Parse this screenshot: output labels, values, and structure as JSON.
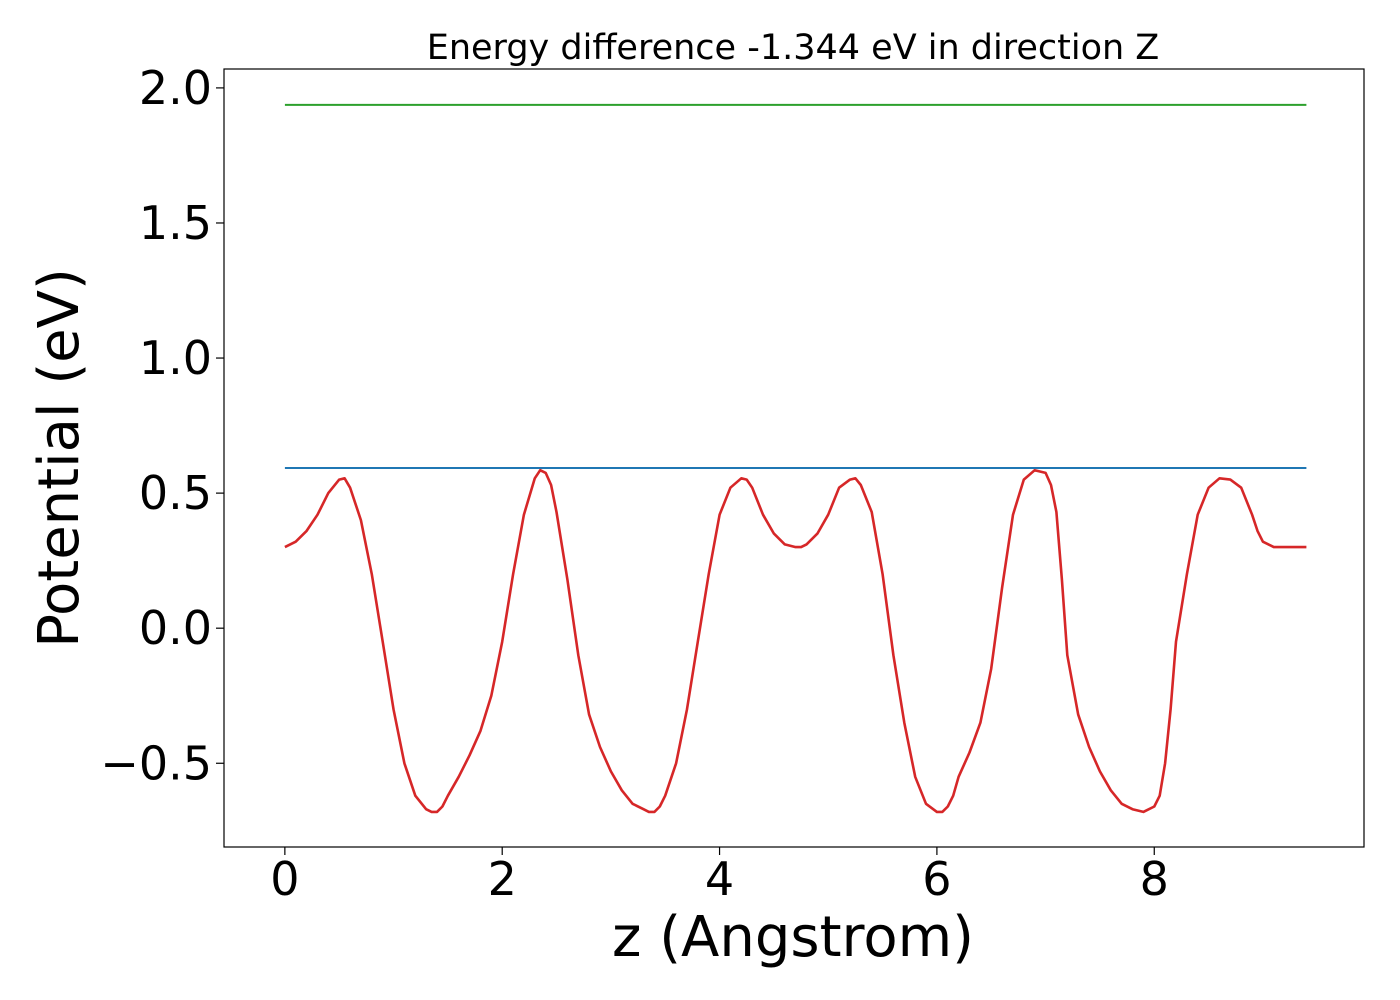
{
  "chart_data": {
    "type": "line",
    "title": "Energy difference -1.344 eV in direction Z",
    "xlabel": "z (Angstrom)",
    "ylabel": "Potential (eV)",
    "xlim": [
      -0.56,
      9.93
    ],
    "ylim": [
      -0.81,
      2.07
    ],
    "x_ticks": [
      0,
      2,
      4,
      6,
      8
    ],
    "y_ticks": [
      -0.5,
      0.0,
      0.5,
      1.0,
      1.5,
      2.0
    ],
    "x_tick_labels": [
      "0",
      "2",
      "4",
      "6",
      "8"
    ],
    "y_tick_labels": [
      "−0.5",
      "0.0",
      "0.5",
      "1.0",
      "1.5",
      "2.0"
    ],
    "grid": false,
    "series": [
      {
        "color": "#d62728",
        "x": [
          0.0,
          0.1,
          0.2,
          0.3,
          0.4,
          0.5,
          0.55,
          0.6,
          0.7,
          0.8,
          0.9,
          1.0,
          1.1,
          1.2,
          1.3,
          1.35,
          1.4,
          1.45,
          1.5,
          1.6,
          1.7,
          1.8,
          1.9,
          2.0,
          2.1,
          2.2,
          2.3,
          2.35,
          2.4,
          2.45,
          2.5,
          2.6,
          2.7,
          2.8,
          2.9,
          3.0,
          3.1,
          3.2,
          3.3,
          3.35,
          3.4,
          3.45,
          3.5,
          3.6,
          3.7,
          3.8,
          3.9,
          4.0,
          4.1,
          4.2,
          4.25,
          4.3,
          4.4,
          4.5,
          4.6,
          4.7,
          4.75,
          4.8,
          4.9,
          5.0,
          5.1,
          5.2,
          5.25,
          5.3,
          5.4,
          5.5,
          5.6,
          5.7,
          5.8,
          5.9,
          6.0,
          6.05,
          6.1,
          6.15,
          6.2,
          6.3,
          6.4,
          6.5,
          6.6,
          6.7,
          6.8,
          6.9,
          7.0,
          7.05,
          7.1,
          7.15,
          7.2,
          7.3,
          7.4,
          7.5,
          7.6,
          7.7,
          7.8,
          7.9,
          8.0,
          8.05,
          8.1,
          8.15,
          8.2,
          8.3,
          8.4,
          8.5,
          8.6,
          8.7,
          8.8,
          8.9,
          8.95,
          9.0,
          9.1,
          9.2,
          9.3,
          9.4
        ],
        "y": [
          0.3,
          0.32,
          0.36,
          0.42,
          0.5,
          0.55,
          0.555,
          0.52,
          0.4,
          0.2,
          -0.05,
          -0.3,
          -0.5,
          -0.62,
          -0.67,
          -0.68,
          -0.68,
          -0.66,
          -0.62,
          -0.55,
          -0.47,
          -0.38,
          -0.25,
          -0.05,
          0.2,
          0.42,
          0.555,
          0.585,
          0.575,
          0.53,
          0.43,
          0.18,
          -0.1,
          -0.32,
          -0.44,
          -0.53,
          -0.6,
          -0.65,
          -0.67,
          -0.68,
          -0.68,
          -0.66,
          -0.62,
          -0.5,
          -0.3,
          -0.05,
          0.2,
          0.42,
          0.52,
          0.555,
          0.55,
          0.52,
          0.42,
          0.35,
          0.31,
          0.3,
          0.3,
          0.31,
          0.35,
          0.42,
          0.52,
          0.55,
          0.555,
          0.53,
          0.43,
          0.2,
          -0.1,
          -0.35,
          -0.55,
          -0.65,
          -0.68,
          -0.68,
          -0.66,
          -0.62,
          -0.55,
          -0.46,
          -0.35,
          -0.15,
          0.15,
          0.42,
          0.55,
          0.585,
          0.575,
          0.53,
          0.43,
          0.18,
          -0.1,
          -0.32,
          -0.44,
          -0.53,
          -0.6,
          -0.65,
          -0.67,
          -0.68,
          -0.66,
          -0.62,
          -0.5,
          -0.3,
          -0.05,
          0.2,
          0.42,
          0.52,
          0.555,
          0.55,
          0.52,
          0.42,
          0.36,
          0.32,
          0.3,
          0.3,
          0.3,
          0.3
        ]
      },
      {
        "color": "#1f77b4",
        "x": [
          0.0,
          9.4
        ],
        "y": [
          0.593,
          0.593
        ]
      },
      {
        "color": "#2ca02c",
        "x": [
          0.0,
          9.4
        ],
        "y": [
          1.937,
          1.937
        ]
      }
    ]
  }
}
